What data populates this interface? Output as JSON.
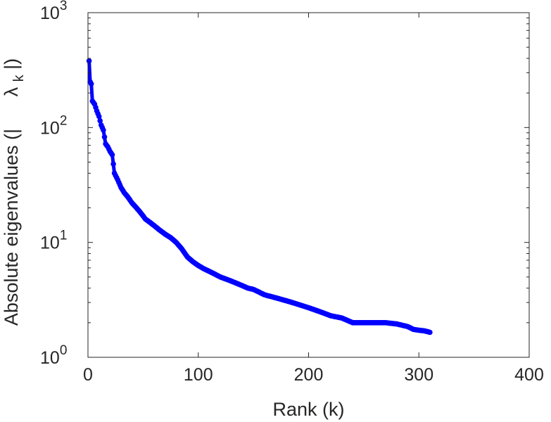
{
  "chart_data": {
    "type": "line",
    "xlabel": "Rank (k)",
    "ylabel": "Absolute eigenvalues (|     λk|)",
    "ylabel_parts": {
      "prefix": "Absolute eigenvalues (|",
      "symbol": "λ",
      "subscript": "k",
      "suffix": "|)"
    },
    "xlim": [
      0,
      400
    ],
    "ylim": [
      1,
      1000
    ],
    "yscale": "log",
    "grid": false,
    "legend": "none",
    "x_ticks": [
      "0",
      "100",
      "200",
      "300",
      "400"
    ],
    "y_ticks": [
      {
        "base": "10",
        "exp": "0",
        "value": 1
      },
      {
        "base": "10",
        "exp": "1",
        "value": 10
      },
      {
        "base": "10",
        "exp": "2",
        "value": 100
      },
      {
        "base": "10",
        "exp": "3",
        "value": 1000
      }
    ],
    "series": [
      {
        "color": "#0000ff",
        "marker": "circle",
        "points": [
          [
            1,
            380
          ],
          [
            2,
            250
          ],
          [
            3,
            240
          ],
          [
            4,
            170
          ],
          [
            6,
            160
          ],
          [
            8,
            140
          ],
          [
            10,
            125
          ],
          [
            12,
            105
          ],
          [
            14,
            95
          ],
          [
            16,
            72
          ],
          [
            18,
            68
          ],
          [
            20,
            62
          ],
          [
            22,
            58
          ],
          [
            24,
            40
          ],
          [
            27,
            35
          ],
          [
            30,
            30
          ],
          [
            33,
            27
          ],
          [
            36,
            25
          ],
          [
            40,
            22
          ],
          [
            44,
            20
          ],
          [
            48,
            18
          ],
          [
            52,
            16
          ],
          [
            56,
            15
          ],
          [
            60,
            14
          ],
          [
            65,
            12.8
          ],
          [
            70,
            11.8
          ],
          [
            75,
            11
          ],
          [
            80,
            10
          ],
          [
            85,
            8.8
          ],
          [
            90,
            7.5
          ],
          [
            95,
            6.8
          ],
          [
            100,
            6.3
          ],
          [
            105,
            5.9
          ],
          [
            110,
            5.6
          ],
          [
            115,
            5.3
          ],
          [
            120,
            5.0
          ],
          [
            125,
            4.8
          ],
          [
            130,
            4.6
          ],
          [
            135,
            4.4
          ],
          [
            140,
            4.2
          ],
          [
            145,
            4.0
          ],
          [
            150,
            3.9
          ],
          [
            155,
            3.7
          ],
          [
            160,
            3.5
          ],
          [
            165,
            3.4
          ],
          [
            170,
            3.3
          ],
          [
            175,
            3.2
          ],
          [
            180,
            3.1
          ],
          [
            185,
            3.0
          ],
          [
            190,
            2.9
          ],
          [
            195,
            2.8
          ],
          [
            200,
            2.7
          ],
          [
            205,
            2.6
          ],
          [
            210,
            2.5
          ],
          [
            215,
            2.4
          ],
          [
            220,
            2.3
          ],
          [
            225,
            2.25
          ],
          [
            230,
            2.2
          ],
          [
            235,
            2.1
          ],
          [
            240,
            2.0
          ],
          [
            250,
            2.0
          ],
          [
            260,
            2.0
          ],
          [
            270,
            2.0
          ],
          [
            280,
            1.95
          ],
          [
            290,
            1.85
          ],
          [
            295,
            1.75
          ],
          [
            300,
            1.72
          ],
          [
            305,
            1.7
          ],
          [
            310,
            1.65
          ]
        ]
      }
    ]
  }
}
